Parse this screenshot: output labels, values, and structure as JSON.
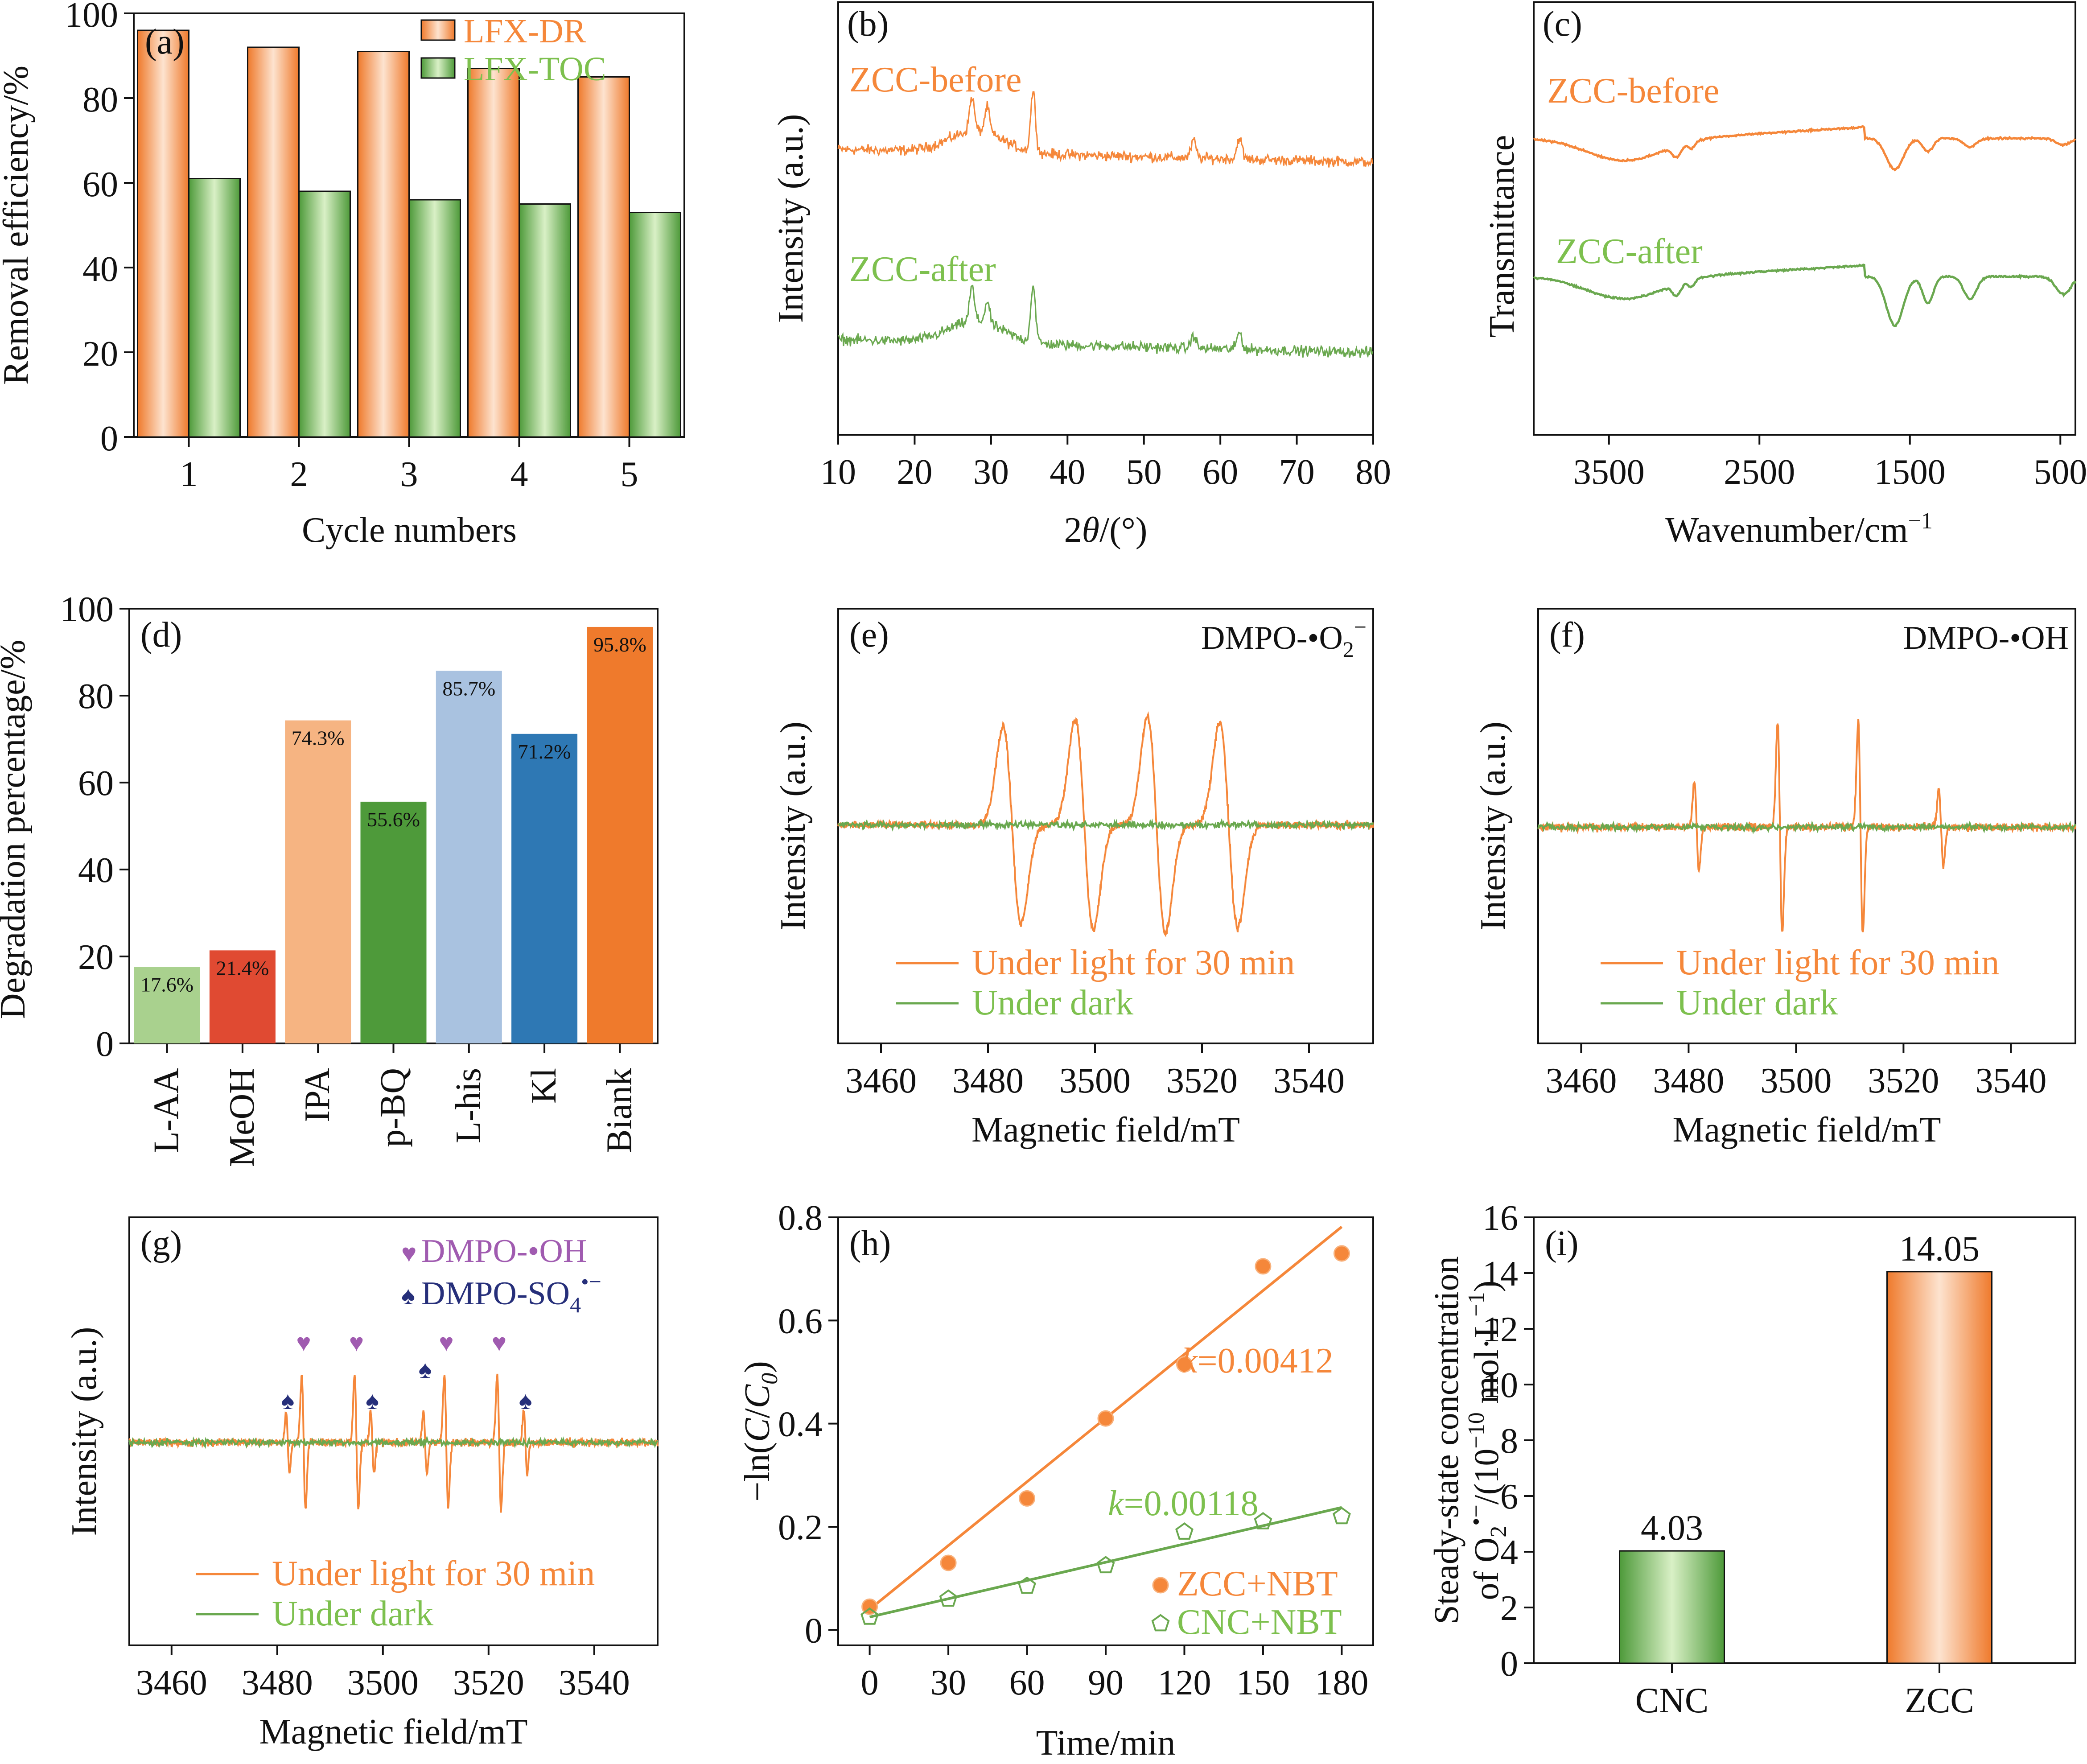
{
  "colors": {
    "orange": "#f5873a",
    "orange_dark": "#ef7a2c",
    "green": "#6aa84f",
    "green_light": "#7dc04e",
    "light_green": "#a9d18e",
    "red": "#e04a32",
    "peach": "#f6b482",
    "dark_green": "#4e9a3a",
    "light_blue": "#a9c2e0",
    "blue": "#2e78b4",
    "purple": "#a05bb0",
    "navy": "#262f7a"
  },
  "chart_data": [
    {
      "id": "a",
      "panel_label": "(a)",
      "type": "bar",
      "xlabel": "Cycle numbers",
      "ylabel": "Removal efficiency/%",
      "ylim": [
        0,
        100
      ],
      "yticks": [
        "0",
        "20",
        "40",
        "60",
        "80",
        "100"
      ],
      "categories": [
        "1",
        "2",
        "3",
        "4",
        "5"
      ],
      "series": [
        {
          "name": "LFX-DR",
          "values": [
            96,
            92,
            91,
            87,
            85
          ]
        },
        {
          "name": "LFX-TOC",
          "values": [
            61,
            58,
            56,
            55,
            53
          ]
        }
      ]
    },
    {
      "id": "b",
      "panel_label": "(b)",
      "type": "line",
      "xlabel": "2θ/(°)",
      "ylabel": "Intensity (a.u.)",
      "xlim": [
        10,
        80
      ],
      "xticks": [
        "10",
        "20",
        "30",
        "40",
        "50",
        "60",
        "70",
        "80"
      ],
      "series": [
        {
          "name": "ZCC-before",
          "baseline": 0.66,
          "peaks": [
            [
              27.5,
              0.08
            ],
            [
              29.5,
              0.06
            ],
            [
              35.5,
              0.14
            ],
            [
              56.5,
              0.04
            ],
            [
              62.5,
              0.05
            ]
          ]
        },
        {
          "name": "ZCC-after",
          "baseline": 0.22,
          "peaks": [
            [
              27.5,
              0.08
            ],
            [
              29.5,
              0.05
            ],
            [
              35.5,
              0.13
            ],
            [
              56.5,
              0.03
            ],
            [
              62.5,
              0.04
            ]
          ]
        }
      ]
    },
    {
      "id": "c",
      "panel_label": "(c)",
      "type": "line",
      "xlabel": "Wavenumber/cm",
      "xlabel_sup": "−1",
      "ylabel": "Transmittance",
      "xlim": [
        4000,
        400
      ],
      "xticks": [
        "3500",
        "2500",
        "1500",
        "500"
      ],
      "series": [
        {
          "name": "ZCC-before"
        },
        {
          "name": "ZCC-after"
        }
      ]
    },
    {
      "id": "d",
      "panel_label": "(d)",
      "type": "bar",
      "xlabel": "",
      "ylabel": "Degradation percentage/%",
      "ylim": [
        0,
        100
      ],
      "yticks": [
        "0",
        "20",
        "40",
        "60",
        "80",
        "100"
      ],
      "categories": [
        "L-AA",
        "MeOH",
        "IPA",
        "p-BQ",
        "L-his",
        "Kl",
        "Biank"
      ],
      "values": [
        17.6,
        21.4,
        74.3,
        55.6,
        85.7,
        71.2,
        95.8
      ],
      "data_labels": [
        "17.6%",
        "21.4%",
        "74.3%",
        "55.6%",
        "85.7%",
        "71.2%",
        "95.8%"
      ]
    },
    {
      "id": "e",
      "panel_label": "(e)",
      "type": "line",
      "title": "DMPO-•O",
      "title_sub": "2",
      "title_sup": "−",
      "xlabel": "Magnetic field/mT",
      "ylabel": "Intensity (a.u.)",
      "xlim": [
        3452,
        3552
      ],
      "xticks": [
        "3460",
        "3480",
        "3500",
        "3520",
        "3540"
      ],
      "lines": [
        {
          "name": "Under light for 30 min",
          "peaks": [
            3484.5,
            3498,
            3511.5,
            3525
          ],
          "amplitude": [
            0.75,
            0.8,
            0.82,
            0.78
          ]
        },
        {
          "name": "Under dark"
        }
      ]
    },
    {
      "id": "f",
      "panel_label": "(f)",
      "type": "line",
      "title": "DMPO-•OH",
      "xlabel": "Magnetic field/mT",
      "ylabel": "Intensity (a.u.)",
      "xlim": [
        3452,
        3552
      ],
      "xticks": [
        "3460",
        "3480",
        "3500",
        "3520",
        "3540"
      ],
      "lines": [
        {
          "name": "Under light for 30 min",
          "peaks": [
            3481.5,
            3497,
            3512,
            3527
          ],
          "amplitude": [
            0.35,
            0.85,
            0.85,
            0.3
          ]
        },
        {
          "name": "Under dark"
        }
      ]
    },
    {
      "id": "g",
      "panel_label": "(g)",
      "type": "line",
      "xlabel": "Magnetic field/mT",
      "ylabel": "Intensity (a.u.)",
      "xlim": [
        3452,
        3552
      ],
      "xticks": [
        "3460",
        "3480",
        "3500",
        "3520",
        "3540"
      ],
      "legend_markers": [
        {
          "name": "DMPO-•OH",
          "symbol": "♥"
        },
        {
          "name": "DMPO-SO",
          "sub": "4",
          "sup": "•−",
          "symbol": "♠"
        }
      ],
      "heart_positions": [
        3485,
        3495,
        3512,
        3522
      ],
      "spade_positions": [
        3482,
        3498,
        3508,
        3527
      ],
      "lines": [
        {
          "name": "Under light for 30 min"
        },
        {
          "name": "Under dark"
        }
      ]
    },
    {
      "id": "h",
      "panel_label": "(h)",
      "type": "scatter",
      "xlabel": "Time/min",
      "ylabel": "−ln(C/C",
      "ylabel_sub": "0",
      "xlim": [
        -12,
        192
      ],
      "ylim": [
        -0.03,
        0.8
      ],
      "xticks": [
        "0",
        "30",
        "60",
        "90",
        "120",
        "150",
        "180"
      ],
      "yticks": [
        "0",
        "0.2",
        "0.4",
        "0.6",
        "0.8"
      ],
      "series": [
        {
          "name": "ZCC+NBT",
          "x": [
            0,
            30,
            60,
            90,
            120,
            150,
            180
          ],
          "y": [
            0.045,
            0.13,
            0.255,
            0.41,
            0.515,
            0.705,
            0.73
          ],
          "fit": [
            0.04,
            0.00412
          ],
          "k_label": "k",
          "k_value": "=0.00412"
        },
        {
          "name": "CNC+NBT",
          "x": [
            0,
            30,
            60,
            90,
            120,
            150,
            180
          ],
          "y": [
            0.025,
            0.06,
            0.085,
            0.125,
            0.19,
            0.21,
            0.22
          ],
          "fit": [
            0.025,
            0.00118
          ],
          "k_label": "k",
          "k_value": "=0.00118"
        }
      ]
    },
    {
      "id": "i",
      "panel_label": "(i)",
      "type": "bar",
      "ylabel_line1": "Steady-state concentration",
      "ylabel_line2": "of O",
      "ylabel_sub": "2",
      "ylabel_sup": "•−",
      "ylabel_line2b": "/(10",
      "ylabel_sup2": "−10",
      "ylabel_line2c": " mol·L",
      "ylabel_sup3": "−1",
      "ylabel_end": ")",
      "ylim": [
        0,
        16
      ],
      "yticks": [
        "0",
        "2",
        "4",
        "6",
        "8",
        "10",
        "12",
        "14",
        "16"
      ],
      "categories": [
        "CNC",
        "ZCC"
      ],
      "values": [
        4.03,
        14.05
      ],
      "data_labels": [
        "4.03",
        "14.05"
      ]
    }
  ]
}
